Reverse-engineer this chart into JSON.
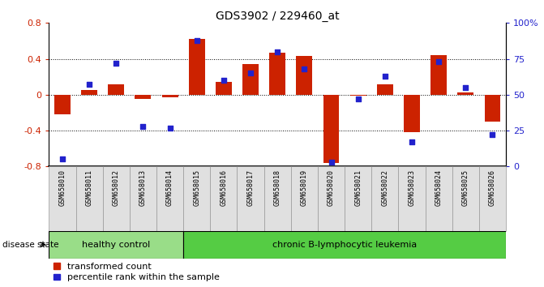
{
  "title": "GDS3902 / 229460_at",
  "samples": [
    "GSM658010",
    "GSM658011",
    "GSM658012",
    "GSM658013",
    "GSM658014",
    "GSM658015",
    "GSM658016",
    "GSM658017",
    "GSM658018",
    "GSM658019",
    "GSM658020",
    "GSM658021",
    "GSM658022",
    "GSM658023",
    "GSM658024",
    "GSM658025",
    "GSM658026"
  ],
  "transformed_count": [
    -0.22,
    0.05,
    0.12,
    -0.05,
    -0.03,
    0.62,
    0.14,
    0.34,
    0.47,
    0.43,
    -0.76,
    -0.01,
    0.12,
    -0.42,
    0.44,
    0.03,
    -0.3
  ],
  "percentile_rank": [
    5,
    57,
    72,
    28,
    27,
    88,
    60,
    65,
    80,
    68,
    3,
    47,
    63,
    17,
    73,
    55,
    22
  ],
  "healthy_control_count": 5,
  "disease_state_label": "disease state",
  "group_labels": [
    "healthy control",
    "chronic B-lymphocytic leukemia"
  ],
  "legend_labels": [
    "transformed count",
    "percentile rank within the sample"
  ],
  "bar_color": "#cc2200",
  "dot_color": "#2222cc",
  "healthy_color": "#99dd88",
  "leukemia_color": "#55cc44",
  "yticks_left": [
    -0.8,
    -0.4,
    0.0,
    0.4,
    0.8
  ],
  "ytick_labels_left": [
    "-0.8",
    "-0.4",
    "0",
    "0.4",
    "0.8"
  ],
  "yticks_right": [
    0,
    25,
    50,
    75,
    100
  ],
  "ytick_labels_right": [
    "0",
    "25",
    "50",
    "75",
    "100%"
  ],
  "hlines": [
    0.4,
    0.0,
    -0.4
  ]
}
